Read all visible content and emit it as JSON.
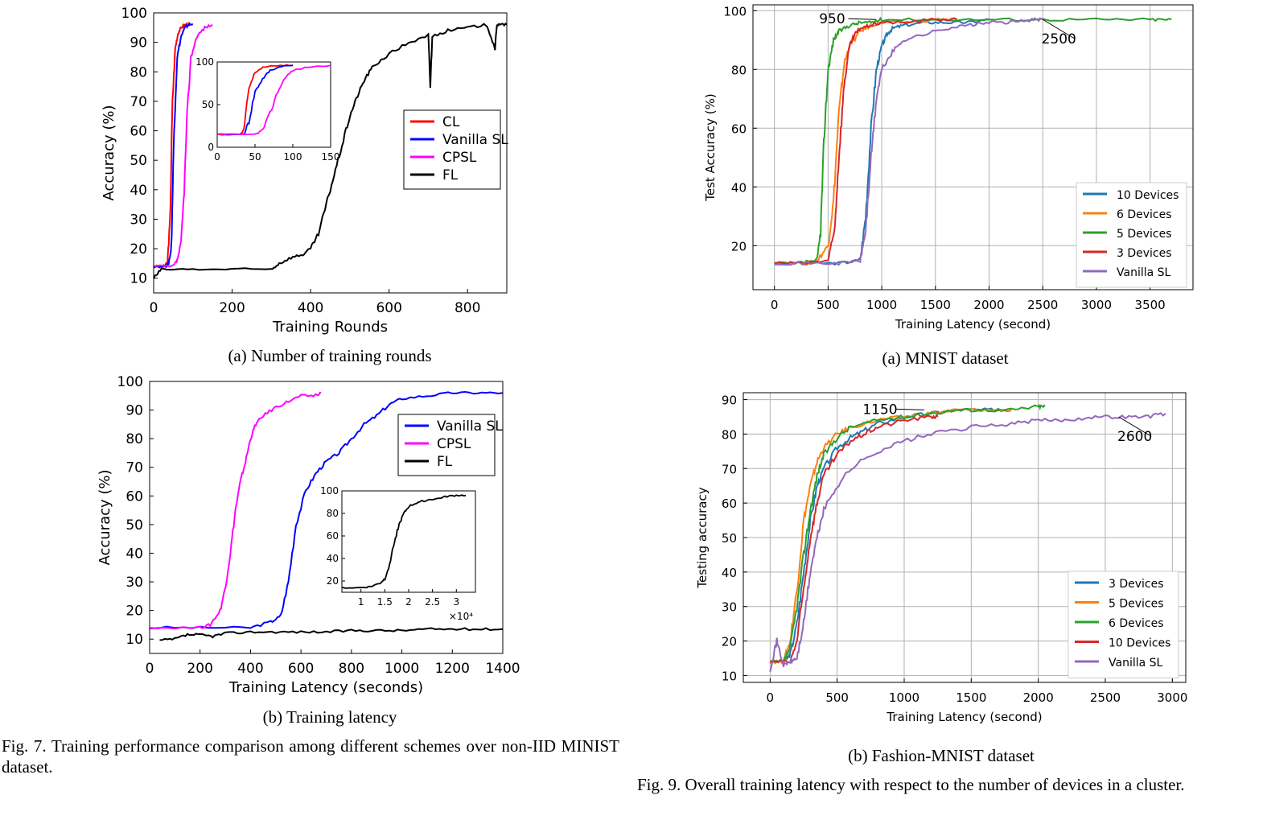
{
  "chart_data": [
    {
      "id": "7a",
      "type": "line",
      "xlabel": "Training Rounds",
      "ylabel": "Accuracy (%)",
      "xlim": [
        0,
        900
      ],
      "ylim": [
        5,
        100
      ],
      "xticks": [
        0,
        200,
        400,
        600,
        800
      ],
      "yticks": [
        10,
        20,
        30,
        40,
        50,
        60,
        70,
        80,
        90,
        100
      ],
      "grid": false,
      "legend_position": "right",
      "series": [
        {
          "name": "CL",
          "color": "#ff0000",
          "x": [
            0,
            25,
            35,
            42,
            48,
            55,
            62,
            70,
            80,
            90
          ],
          "y": [
            14,
            14,
            15,
            30,
            70,
            88,
            93,
            95,
            96,
            96
          ]
        },
        {
          "name": "Vanilla SL",
          "color": "#0000ff",
          "x": [
            0,
            30,
            38,
            45,
            52,
            60,
            70,
            80,
            90,
            100
          ],
          "y": [
            14,
            14,
            15,
            20,
            60,
            85,
            92,
            95,
            96,
            96
          ]
        },
        {
          "name": "CPSL",
          "color": "#ff00ff",
          "x": [
            0,
            50,
            60,
            70,
            78,
            85,
            95,
            110,
            130,
            150
          ],
          "y": [
            14,
            14,
            16,
            22,
            40,
            65,
            85,
            92,
            95,
            96
          ]
        },
        {
          "name": "FL",
          "color": "#000000",
          "x": [
            0,
            20,
            100,
            200,
            300,
            320,
            350,
            380,
            400,
            420,
            440,
            460,
            480,
            500,
            520,
            540,
            560,
            600,
            650,
            700,
            705,
            710,
            750,
            800,
            850,
            870,
            875,
            880,
            900
          ],
          "y": [
            10,
            13,
            13,
            13,
            13,
            15,
            17,
            18,
            20,
            25,
            35,
            45,
            55,
            65,
            72,
            78,
            82,
            86,
            90,
            92,
            75,
            92,
            94,
            95,
            96,
            88,
            96,
            96,
            96
          ]
        }
      ],
      "inset": {
        "xlim": [
          0,
          150
        ],
        "ylim": [
          0,
          100
        ],
        "xticks": [
          0,
          50,
          100,
          150
        ],
        "yticks": [
          0,
          50,
          100
        ],
        "series": [
          {
            "color": "#ff0000",
            "x": [
              0,
              30,
              35,
              42,
              50,
              60,
              80,
              100
            ],
            "y": [
              15,
              15,
              20,
              70,
              88,
              94,
              96,
              96
            ]
          },
          {
            "color": "#0000ff",
            "x": [
              0,
              35,
              42,
              50,
              60,
              70,
              85,
              100
            ],
            "y": [
              15,
              15,
              30,
              65,
              80,
              90,
              95,
              96
            ]
          },
          {
            "color": "#ff00ff",
            "x": [
              0,
              50,
              60,
              70,
              80,
              90,
              100,
              120,
              150
            ],
            "y": [
              15,
              15,
              20,
              40,
              65,
              82,
              90,
              94,
              96
            ]
          }
        ]
      }
    },
    {
      "id": "7b",
      "type": "line",
      "xlabel": "Training Latency (seconds)",
      "ylabel": "Accuracy (%)",
      "xlim": [
        0,
        1400
      ],
      "ylim": [
        5,
        100
      ],
      "xticks": [
        0,
        200,
        400,
        600,
        800,
        1000,
        1200,
        1400
      ],
      "yticks": [
        10,
        20,
        30,
        40,
        50,
        60,
        70,
        80,
        90,
        100
      ],
      "grid": false,
      "legend_position": "top-right",
      "series": [
        {
          "name": "Vanilla SL",
          "color": "#0000ff",
          "x": [
            0,
            200,
            400,
            480,
            520,
            550,
            580,
            620,
            660,
            700,
            750,
            800,
            850,
            900,
            950,
            1000,
            1100,
            1200,
            1300,
            1400
          ],
          "y": [
            14,
            14,
            14,
            16,
            18,
            30,
            50,
            62,
            68,
            72,
            75,
            80,
            85,
            88,
            92,
            94,
            95,
            96,
            96,
            96
          ]
        },
        {
          "name": "CPSL",
          "color": "#ff00ff",
          "x": [
            0,
            200,
            240,
            280,
            300,
            320,
            340,
            360,
            380,
            400,
            420,
            450,
            500,
            550,
            600,
            650,
            680
          ],
          "y": [
            14,
            14,
            15,
            20,
            28,
            40,
            55,
            65,
            72,
            80,
            85,
            88,
            91,
            93,
            95,
            95,
            96
          ]
        },
        {
          "name": "FL",
          "color": "#000000",
          "x": [
            40,
            100,
            150,
            200,
            250,
            300,
            400,
            500,
            600,
            700,
            800,
            900,
            1000,
            1100,
            1200,
            1300,
            1400
          ],
          "y": [
            9.5,
            10,
            11.5,
            11.5,
            11,
            12,
            12.5,
            12.5,
            12.5,
            12.5,
            13,
            13,
            13,
            13.5,
            13.5,
            13.5,
            13.5
          ]
        }
      ],
      "inset": {
        "xlim": [
          0.6,
          3.4
        ],
        "ylim": [
          10,
          100
        ],
        "xticks": [
          1,
          1.5,
          2,
          2.5,
          3
        ],
        "xtick_labels": [
          "1",
          "1.5",
          "2",
          "2.5",
          "3"
        ],
        "yticks": [
          20,
          40,
          60,
          80,
          100
        ],
        "x_multiplier": "×10⁴",
        "series": [
          {
            "color": "#000000",
            "x": [
              0.6,
              1.0,
              1.2,
              1.4,
              1.5,
              1.6,
              1.7,
              1.8,
              1.9,
              2.0,
              2.2,
              2.4,
              2.6,
              2.8,
              3.0,
              3.2
            ],
            "y": [
              14,
              14,
              15,
              18,
              22,
              35,
              55,
              70,
              80,
              86,
              90,
              92,
              93,
              95,
              96,
              96
            ]
          }
        ]
      }
    },
    {
      "id": "9a",
      "type": "line",
      "xlabel": "Training Latency (second)",
      "ylabel": "Test Accuracy (%)",
      "xlim": [
        -200,
        3900
      ],
      "ylim": [
        5,
        102
      ],
      "xticks": [
        0,
        500,
        1000,
        1500,
        2000,
        2500,
        3000,
        3500
      ],
      "yticks": [
        20,
        40,
        60,
        80,
        100
      ],
      "grid": true,
      "legend_position": "bottom-right",
      "annotations": [
        {
          "text": "950",
          "x": 950,
          "y": 97
        },
        {
          "text": "2500",
          "x": 2500,
          "y": 97
        }
      ],
      "series": [
        {
          "name": "10 Devices",
          "color": "#1f77b4",
          "x": [
            0,
            300,
            600,
            800,
            850,
            900,
            950,
            1000,
            1050,
            1100,
            1200,
            1400,
            1600,
            1800,
            2000
          ],
          "y": [
            14,
            14,
            14,
            15,
            30,
            60,
            80,
            88,
            92,
            94,
            95,
            96,
            96,
            96,
            97
          ]
        },
        {
          "name": "6 Devices",
          "color": "#ff7f0e",
          "x": [
            0,
            300,
            400,
            500,
            550,
            600,
            650,
            700,
            800,
            900,
            1000,
            1200,
            1500,
            1700
          ],
          "y": [
            14,
            14,
            15,
            20,
            35,
            65,
            82,
            88,
            93,
            95,
            96,
            96,
            97,
            97
          ]
        },
        {
          "name": "5 Devices",
          "color": "#2ca02c",
          "x": [
            0,
            200,
            400,
            430,
            460,
            500,
            550,
            600,
            700,
            800,
            900,
            1000,
            1500,
            2000,
            2500,
            3000,
            3500,
            3700
          ],
          "y": [
            14,
            14,
            15,
            25,
            55,
            80,
            90,
            93,
            95,
            96,
            96,
            97,
            97,
            97,
            97,
            97,
            97,
            97
          ]
        },
        {
          "name": "3 Devices",
          "color": "#d62728",
          "x": [
            0,
            300,
            500,
            560,
            600,
            650,
            700,
            750,
            800,
            900,
            1000,
            1200,
            1500,
            1700
          ],
          "y": [
            14,
            14,
            15,
            25,
            50,
            75,
            88,
            92,
            94,
            95,
            96,
            96,
            97,
            97
          ]
        },
        {
          "name": "Vanilla SL",
          "color": "#9467bd",
          "x": [
            0,
            300,
            600,
            800,
            850,
            900,
            950,
            1000,
            1100,
            1200,
            1400,
            1600,
            1800,
            2000,
            2200,
            2400,
            2500
          ],
          "y": [
            14,
            14,
            14,
            15,
            25,
            50,
            70,
            80,
            86,
            90,
            92,
            94,
            95,
            96,
            96,
            97,
            97
          ]
        }
      ]
    },
    {
      "id": "9b",
      "type": "line",
      "xlabel": "Training Latency (second)",
      "ylabel": "Testing accuracy",
      "xlim": [
        -200,
        3100
      ],
      "ylim": [
        8,
        92
      ],
      "xticks": [
        0,
        500,
        1000,
        1500,
        2000,
        2500,
        3000
      ],
      "yticks": [
        10,
        20,
        30,
        40,
        50,
        60,
        70,
        80,
        90
      ],
      "grid": true,
      "legend_position": "bottom-right",
      "annotations": [
        {
          "text": "1150",
          "x": 1150,
          "y": 87
        },
        {
          "text": "2600",
          "x": 2600,
          "y": 85
        }
      ],
      "series": [
        {
          "name": "3 Devices",
          "color": "#1f77b4",
          "x": [
            0,
            100,
            150,
            200,
            250,
            300,
            350,
            400,
            500,
            600,
            700,
            800,
            1000,
            1200,
            1400,
            1600,
            1800
          ],
          "y": [
            14,
            14,
            16,
            25,
            40,
            55,
            65,
            70,
            76,
            79,
            81,
            83,
            85,
            86,
            87,
            87,
            87
          ]
        },
        {
          "name": "5 Devices",
          "color": "#ff7f0e",
          "x": [
            0,
            100,
            150,
            200,
            250,
            300,
            350,
            400,
            500,
            600,
            800,
            1000,
            1200,
            1400,
            1600,
            1800
          ],
          "y": [
            14,
            14,
            20,
            35,
            55,
            65,
            72,
            76,
            80,
            82,
            84,
            85,
            86,
            87,
            87,
            87
          ]
        },
        {
          "name": "6 Devices",
          "color": "#2ca02c",
          "x": [
            0,
            100,
            150,
            200,
            250,
            300,
            350,
            400,
            500,
            600,
            800,
            1000,
            1200,
            1400,
            1600,
            1800,
            2000,
            2050
          ],
          "y": [
            14,
            14,
            18,
            30,
            45,
            58,
            68,
            74,
            79,
            82,
            84,
            85,
            86,
            87,
            87,
            87,
            88,
            88
          ]
        },
        {
          "name": "10 Devices",
          "color": "#d62728",
          "x": [
            0,
            150,
            200,
            250,
            300,
            350,
            400,
            500,
            600,
            700,
            800,
            1000,
            1200,
            1250
          ],
          "y": [
            14,
            14,
            20,
            35,
            50,
            60,
            68,
            74,
            78,
            80,
            82,
            84,
            85,
            85
          ]
        },
        {
          "name": "Vanilla SL",
          "color": "#9467bd",
          "x": [
            0,
            50,
            100,
            150,
            200,
            250,
            300,
            350,
            400,
            500,
            600,
            800,
            1000,
            1200,
            1500,
            1800,
            2000,
            2200,
            2400,
            2600,
            2800,
            2950
          ],
          "y": [
            12,
            20,
            13,
            14,
            15,
            25,
            40,
            50,
            58,
            65,
            70,
            75,
            78,
            80,
            82,
            83,
            84,
            84,
            85,
            85,
            85,
            86
          ]
        }
      ]
    }
  ],
  "captions": {
    "fig7a": "(a)  Number of training rounds",
    "fig7b": "(b)  Training latency",
    "fig7": "Fig. 7.    Training performance comparison among different schemes over non-IID MINIST dataset.",
    "fig9a": "(a)  MNIST dataset",
    "fig9b": "(b)  Fashion-MNIST dataset",
    "fig9": "Fig. 9.    Overall training latency with respect to the number of devices in a cluster."
  }
}
